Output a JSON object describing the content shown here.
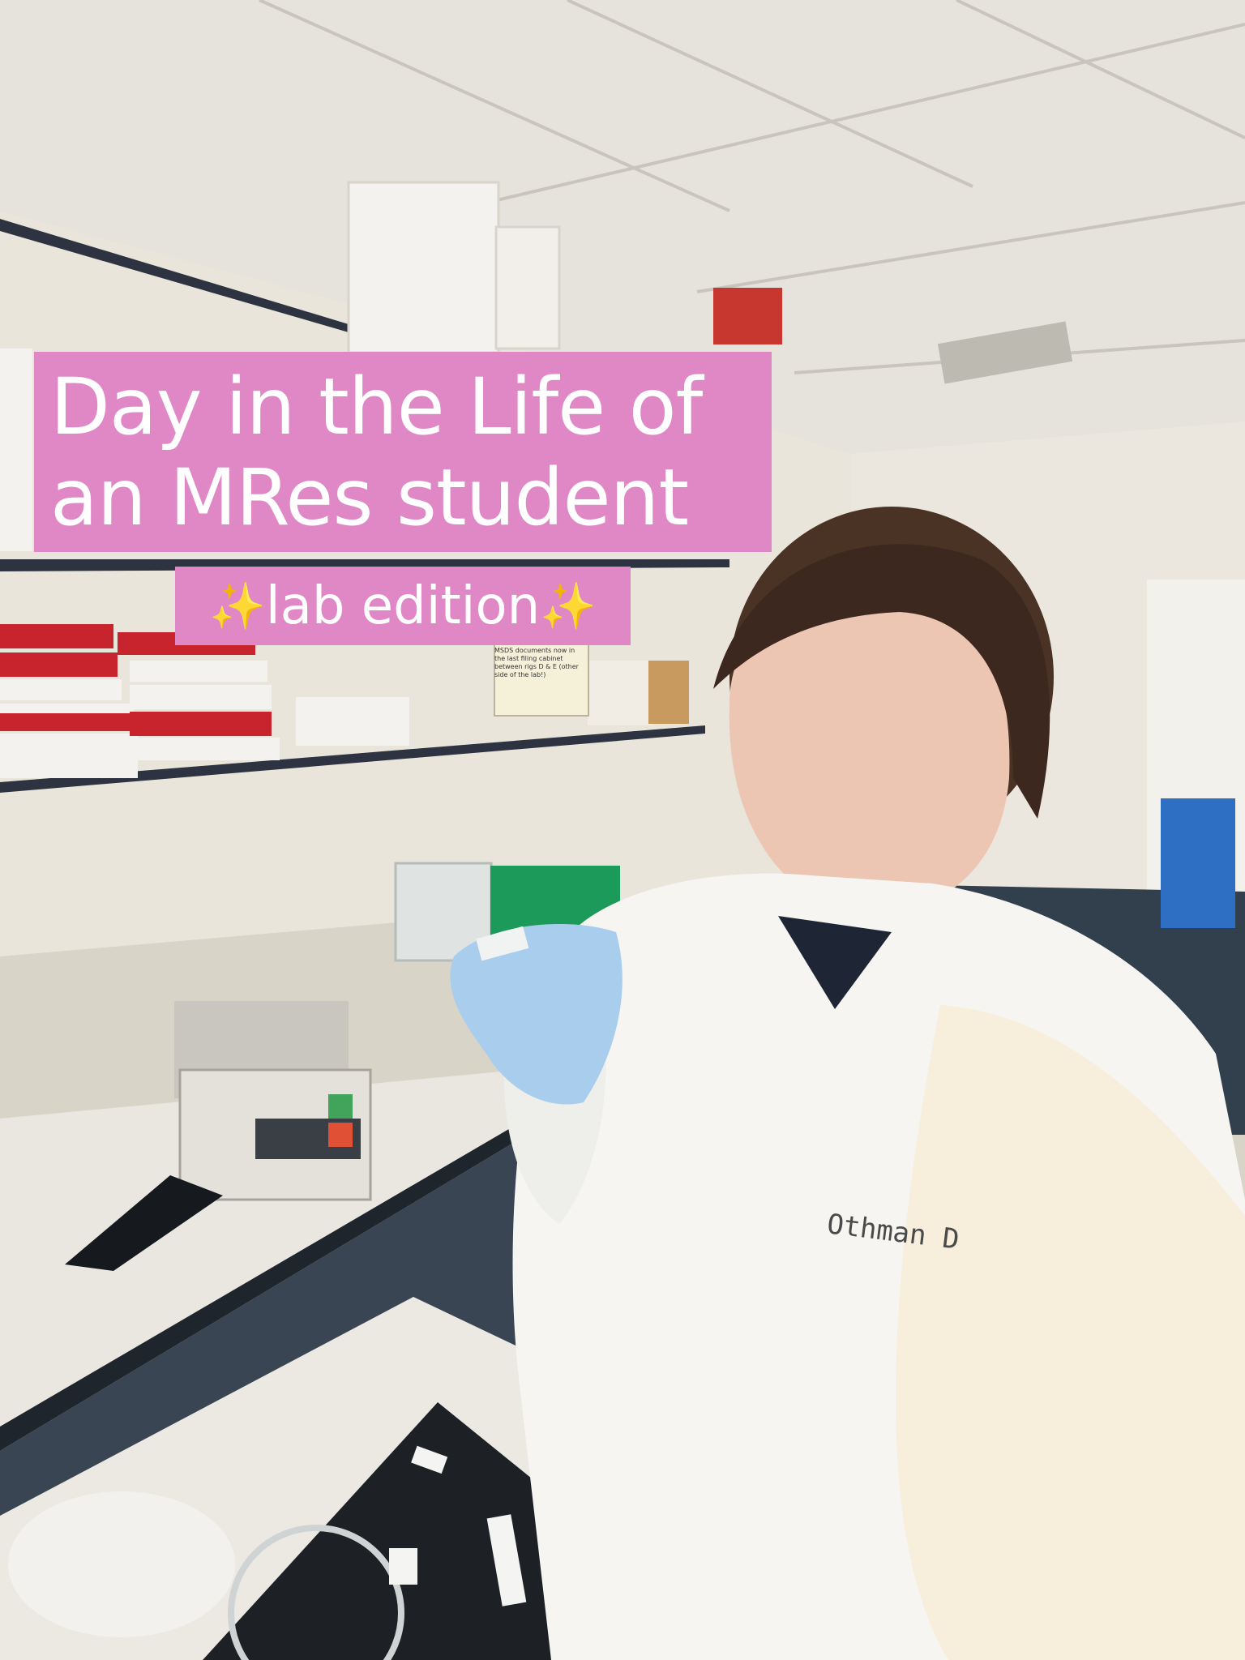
{
  "overlay": {
    "title_line1": "Day in the Life of",
    "title_line2": "an MRes student",
    "subtitle_sparkle_left": "✨",
    "subtitle": "lab edition",
    "subtitle_sparkle_right": "✨",
    "background_color": "#e088c6",
    "text_color": "#ffffff"
  },
  "scene": {
    "coat_name_tag": "Othman D",
    "shelf_note": "MSDS documents now in the last filing cabinet between rigs D & E (other side of the lab!)"
  }
}
